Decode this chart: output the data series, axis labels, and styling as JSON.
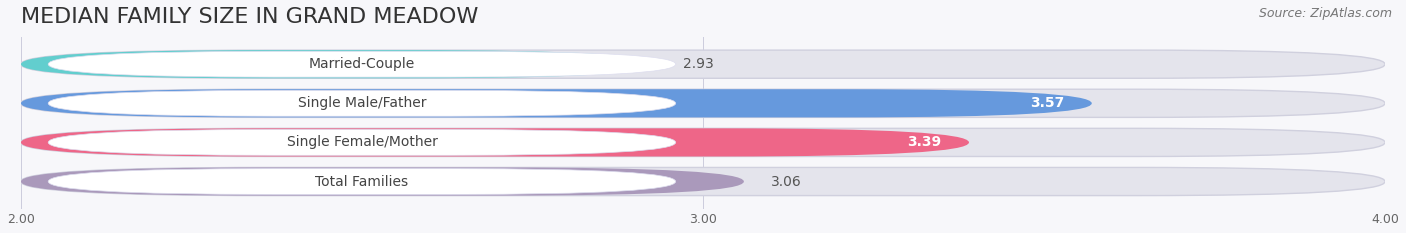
{
  "title": "MEDIAN FAMILY SIZE IN GRAND MEADOW",
  "source": "Source: ZipAtlas.com",
  "categories": [
    "Married-Couple",
    "Single Male/Father",
    "Single Female/Mother",
    "Total Families"
  ],
  "values": [
    2.93,
    3.57,
    3.39,
    3.06
  ],
  "bar_colors": [
    "#62cece",
    "#6699dd",
    "#ee6688",
    "#aa99bb"
  ],
  "xlim_data": [
    2.0,
    4.0
  ],
  "xticks": [
    2.0,
    3.0,
    4.0
  ],
  "xtick_labels": [
    "2.00",
    "3.00",
    "4.00"
  ],
  "bg_color": "#f7f7fa",
  "track_color": "#e4e4ec",
  "track_border_color": "#d0d0de",
  "label_box_color": "#ffffff",
  "title_fontsize": 16,
  "source_fontsize": 9,
  "label_fontsize": 10,
  "value_fontsize": 9,
  "title_color": "#333333",
  "label_color": "#444444",
  "value_color_inside": "#ffffff",
  "value_color_outside": "#555555"
}
